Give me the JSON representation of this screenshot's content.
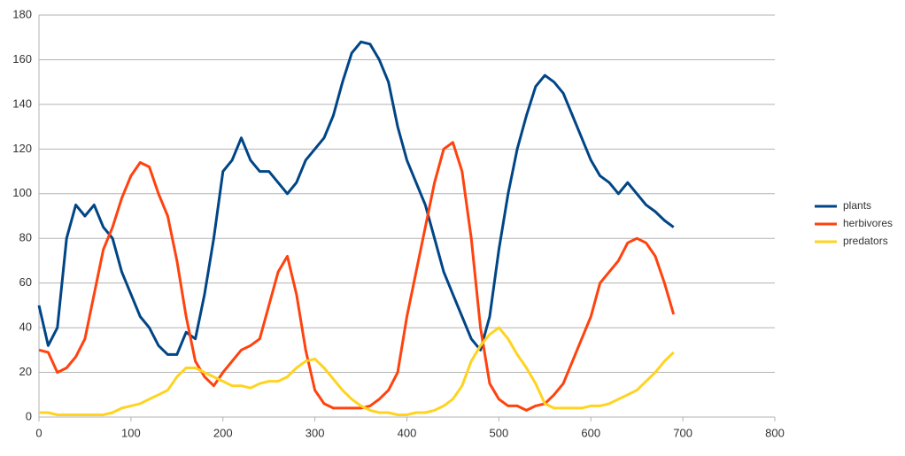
{
  "chart_data": {
    "type": "line",
    "x": [
      0,
      10,
      20,
      30,
      40,
      50,
      60,
      70,
      80,
      90,
      100,
      110,
      120,
      130,
      140,
      150,
      160,
      170,
      180,
      190,
      200,
      210,
      220,
      230,
      240,
      250,
      260,
      270,
      280,
      290,
      300,
      310,
      320,
      330,
      340,
      350,
      360,
      370,
      380,
      390,
      400,
      410,
      420,
      430,
      440,
      450,
      460,
      470,
      480,
      490,
      500,
      510,
      520,
      530,
      540,
      550,
      560,
      570,
      580,
      590,
      600,
      610,
      620,
      630,
      640,
      650,
      660,
      670,
      680,
      690
    ],
    "series": [
      {
        "name": "plants",
        "color": "#004586",
        "values": [
          50,
          32,
          40,
          80,
          95,
          90,
          95,
          85,
          80,
          65,
          55,
          45,
          40,
          32,
          28,
          28,
          38,
          35,
          55,
          80,
          110,
          115,
          125,
          115,
          110,
          110,
          105,
          100,
          105,
          115,
          120,
          125,
          135,
          150,
          163,
          168,
          167,
          160,
          150,
          130,
          115,
          105,
          95,
          80,
          65,
          55,
          45,
          35,
          30,
          45,
          75,
          100,
          120,
          135,
          148,
          153,
          150,
          145,
          135,
          125,
          115,
          108,
          105,
          100,
          105,
          100,
          95,
          92,
          88,
          85
        ]
      },
      {
        "name": "herbivores",
        "color": "#ff420e",
        "values": [
          30,
          29,
          20,
          22,
          27,
          35,
          55,
          75,
          85,
          98,
          108,
          114,
          112,
          100,
          90,
          70,
          45,
          25,
          18,
          14,
          20,
          25,
          30,
          32,
          35,
          50,
          65,
          72,
          55,
          30,
          12,
          6,
          4,
          4,
          4,
          4,
          5,
          8,
          12,
          20,
          45,
          65,
          85,
          105,
          120,
          123,
          110,
          80,
          40,
          15,
          8,
          5,
          5,
          3,
          5,
          6,
          10,
          15,
          25,
          35,
          45,
          60,
          65,
          70,
          78,
          80,
          78,
          72,
          60,
          46
        ]
      },
      {
        "name": "predators",
        "color": "#ffd320",
        "values": [
          2,
          2,
          1,
          1,
          1,
          1,
          1,
          1,
          2,
          4,
          5,
          6,
          8,
          10,
          12,
          18,
          22,
          22,
          20,
          18,
          16,
          14,
          14,
          13,
          15,
          16,
          16,
          18,
          22,
          25,
          26,
          22,
          17,
          12,
          8,
          5,
          3,
          2,
          2,
          1,
          1,
          2,
          2,
          3,
          5,
          8,
          14,
          25,
          32,
          37,
          40,
          35,
          28,
          22,
          15,
          6,
          4,
          4,
          4,
          4,
          5,
          5,
          6,
          8,
          10,
          12,
          16,
          20,
          25,
          29
        ]
      }
    ],
    "xlim": [
      0,
      800
    ],
    "xticks": [
      0,
      100,
      200,
      300,
      400,
      500,
      600,
      700,
      800
    ],
    "ylim": [
      0,
      180
    ],
    "yticks": [
      0,
      20,
      40,
      60,
      80,
      100,
      120,
      140,
      160,
      180
    ],
    "grid": true,
    "legend": "right"
  }
}
